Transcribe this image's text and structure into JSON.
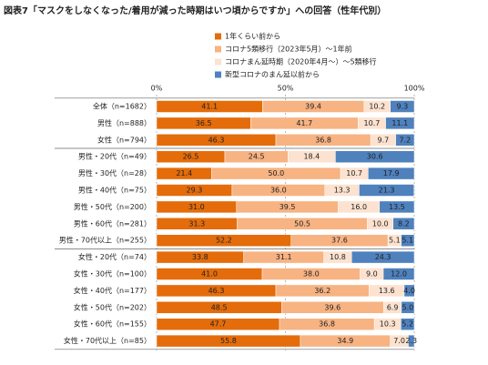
{
  "chart_data": {
    "type": "stacked-bar-horizontal",
    "title": "図表7「マスクをしなくなった/着用が減った時期はいつ頃からですか」への回答（性年代別）",
    "categories": [
      "全体（n=1682）",
      "男性（n=888）",
      "女性（n=794）",
      "男性・20代（n=49）",
      "男性・30代（n=28）",
      "男性・40代（n=75）",
      "男性・50代（n=200）",
      "男性・60代（n=281）",
      "男性・70代以上（n=255）",
      "女性・20代（n=74）",
      "女性・30代（n=100）",
      "女性・40代（n=177）",
      "女性・50代（n=202）",
      "女性・60代（n=155）",
      "女性・70代以上（n=85）"
    ],
    "series": [
      {
        "name": "1年くらい前から",
        "color": "#e46c0a",
        "values": [
          41.1,
          36.5,
          46.3,
          26.5,
          21.4,
          29.3,
          31.0,
          31.3,
          52.2,
          33.8,
          41.0,
          46.3,
          48.5,
          47.7,
          55.8
        ],
        "value_labels": [
          "41.1",
          "36.5",
          "46.3",
          "26.5",
          "21.4",
          "29.3",
          "31.0",
          "31.3",
          "52.2",
          "33.8",
          "41.0",
          "46.3",
          "48.5",
          "47.7",
          "55.8"
        ]
      },
      {
        "name": "コロナ5類移行（2023年5月）〜1年前",
        "color": "#f7b382",
        "values": [
          39.4,
          41.7,
          36.8,
          24.5,
          50.0,
          36.0,
          39.5,
          50.5,
          37.6,
          31.1,
          38.0,
          36.2,
          39.6,
          36.8,
          34.9
        ],
        "value_labels": [
          "39.4",
          "41.7",
          "36.8",
          "24.5",
          "50.0",
          "36.0",
          "39.5",
          "50.5",
          "37.6",
          "31.1",
          "38.0",
          "36.2",
          "39.6",
          "36.8",
          "34.9"
        ]
      },
      {
        "name": "コロナまん延時期（2020年4月〜）〜5類移行",
        "color": "#fce2cf",
        "values": [
          10.2,
          10.7,
          9.7,
          18.4,
          10.7,
          13.3,
          16.0,
          10.0,
          5.1,
          10.8,
          9.0,
          13.6,
          6.9,
          10.3,
          7.0
        ],
        "value_labels": [
          "10.2",
          "10.7",
          "9.7",
          "18.4",
          "10.7",
          "13.3",
          "16.0",
          "10.0",
          "5.1",
          "10.8",
          "9.0",
          "13.6",
          "6.9",
          "10.3",
          "7.0"
        ]
      },
      {
        "name": "新型コロナのまん延以前から",
        "color": "#4f81bd",
        "values": [
          9.3,
          11.1,
          7.2,
          30.6,
          17.9,
          21.3,
          13.5,
          8.2,
          5.1,
          24.3,
          12.0,
          4.0,
          5.0,
          5.2,
          2.3
        ],
        "value_labels": [
          "9.3",
          "11.1",
          "7.2",
          "30.6",
          "17.9",
          "21.3",
          "13.5",
          "8.2",
          "5.1",
          "24.3",
          "12.0",
          "4.0",
          "5.0",
          "5.2",
          "2.3"
        ]
      }
    ],
    "xlim": [
      0,
      100
    ],
    "xticks": [
      {
        "value": 0,
        "label": "0%"
      },
      {
        "value": 50,
        "label": "50%"
      },
      {
        "value": 100,
        "label": "100%"
      }
    ]
  }
}
